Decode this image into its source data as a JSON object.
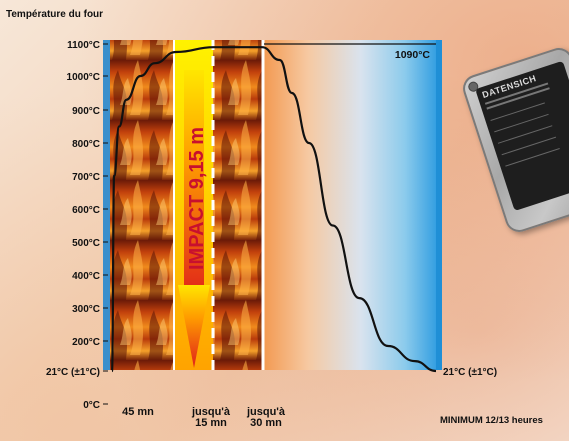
{
  "chart_data": {
    "type": "line",
    "ylabel": "Température du four",
    "y_ticks": [
      "1100°C",
      "1000°C",
      "900°C",
      "800°C",
      "700°C",
      "600°C",
      "500°C",
      "400°C",
      "300°C",
      "200°C",
      "21°C (±1°C)",
      "0°C"
    ],
    "x_labels": [
      {
        "line1": "45 mn",
        "line2": ""
      },
      {
        "line1": "jusqu'à",
        "line2": "15 mn"
      },
      {
        "line1": "jusqu'à",
        "line2": "30 mn"
      },
      {
        "line1": "MINIMUM 12/13 heures",
        "line2": ""
      }
    ],
    "annotations": {
      "peak": "1090°C",
      "end": "21°C (±1°C)",
      "impact": "IMPACT 9,15 m"
    },
    "series": [
      {
        "points": [
          {
            "t": 0,
            "temp": 21
          },
          {
            "t": 1.5,
            "temp": 700
          },
          {
            "t": 5,
            "temp": 850
          },
          {
            "t": 10,
            "temp": 930
          },
          {
            "t": 20,
            "temp": 1000
          },
          {
            "t": 30,
            "temp": 1040
          },
          {
            "t": 45,
            "temp": 1075
          },
          {
            "t": 60,
            "temp": 1090
          },
          {
            "t": 90,
            "temp": 1090
          },
          {
            "t": 120,
            "temp": 1050
          },
          {
            "t": 150,
            "temp": 950
          },
          {
            "t": 200,
            "temp": 800
          },
          {
            "t": 280,
            "temp": 550
          },
          {
            "t": 380,
            "temp": 330
          },
          {
            "t": 500,
            "temp": 170
          },
          {
            "t": 620,
            "temp": 80
          },
          {
            "t": 720,
            "temp": 21
          }
        ]
      }
    ],
    "ylim": [
      0,
      1100
    ],
    "colors": {
      "heating_fill": "#3a8fcc",
      "cooling_start": "#f3a05a",
      "cooling_end": "#2a9ae0",
      "impact_zone": "#ffe100",
      "impact_text": "#c8102e",
      "curve": "#111111",
      "text": "#111111"
    }
  },
  "plate": {
    "title": "DATENSICH"
  }
}
